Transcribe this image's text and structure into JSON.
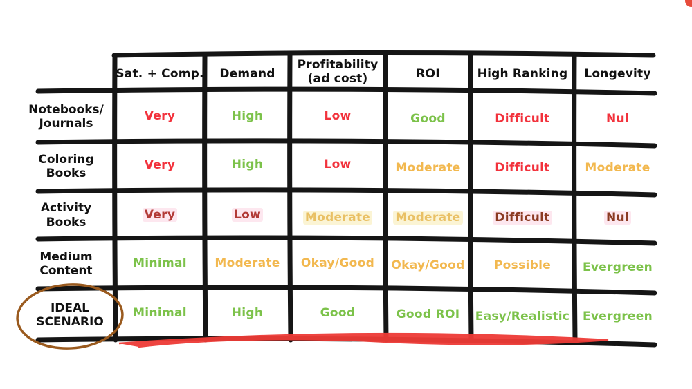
{
  "table": {
    "columns": [
      "Sat. + Comp.",
      "Demand",
      "Profitability\n(ad cost)",
      "ROI",
      "High Ranking",
      "Longevity"
    ],
    "rows": [
      {
        "label": "Notebooks/\nJournals",
        "cells": [
          {
            "text": "Very",
            "color": "red"
          },
          {
            "text": "High",
            "color": "green"
          },
          {
            "text": "Low",
            "color": "red"
          },
          {
            "text": "Good",
            "color": "green"
          },
          {
            "text": "Difficult",
            "color": "red"
          },
          {
            "text": "Nul",
            "color": "red"
          }
        ]
      },
      {
        "label": "Coloring\nBooks",
        "cells": [
          {
            "text": "Very",
            "color": "red"
          },
          {
            "text": "High",
            "color": "green"
          },
          {
            "text": "Low",
            "color": "red"
          },
          {
            "text": "Moderate",
            "color": "orange"
          },
          {
            "text": "Difficult",
            "color": "red"
          },
          {
            "text": "Moderate",
            "color": "orange"
          }
        ]
      },
      {
        "label": "Activity\nBooks",
        "cells": [
          {
            "text": "Very",
            "color": "maroon",
            "highlight": "pink"
          },
          {
            "text": "Low",
            "color": "maroon",
            "highlight": "pink"
          },
          {
            "text": "Moderate",
            "color": "gold",
            "highlight": "yellow"
          },
          {
            "text": "Moderate",
            "color": "gold",
            "highlight": "yellow"
          },
          {
            "text": "Difficult",
            "color": "brown",
            "highlight": "pink"
          },
          {
            "text": "Nul",
            "color": "brown",
            "highlight": "pink"
          }
        ]
      },
      {
        "label": "Medium\nContent",
        "cells": [
          {
            "text": "Minimal",
            "color": "green"
          },
          {
            "text": "Moderate",
            "color": "orange"
          },
          {
            "text": "Okay/Good",
            "color": "orange"
          },
          {
            "text": "Okay/Good",
            "color": "orange"
          },
          {
            "text": "Possible",
            "color": "orange"
          },
          {
            "text": "Evergreen",
            "color": "green"
          }
        ]
      },
      {
        "label": "IDEAL\nSCENARIO",
        "cells": [
          {
            "text": "Minimal",
            "color": "green"
          },
          {
            "text": "High",
            "color": "green"
          },
          {
            "text": "Good",
            "color": "green"
          },
          {
            "text": "Good ROI",
            "color": "green"
          },
          {
            "text": "Easy/Realistic",
            "color": "green"
          },
          {
            "text": "Evergreen",
            "color": "green"
          }
        ]
      }
    ]
  },
  "colors": {
    "grid_line": "#151515",
    "circle": "#9a5a1e",
    "underline": "#ee3b36"
  }
}
